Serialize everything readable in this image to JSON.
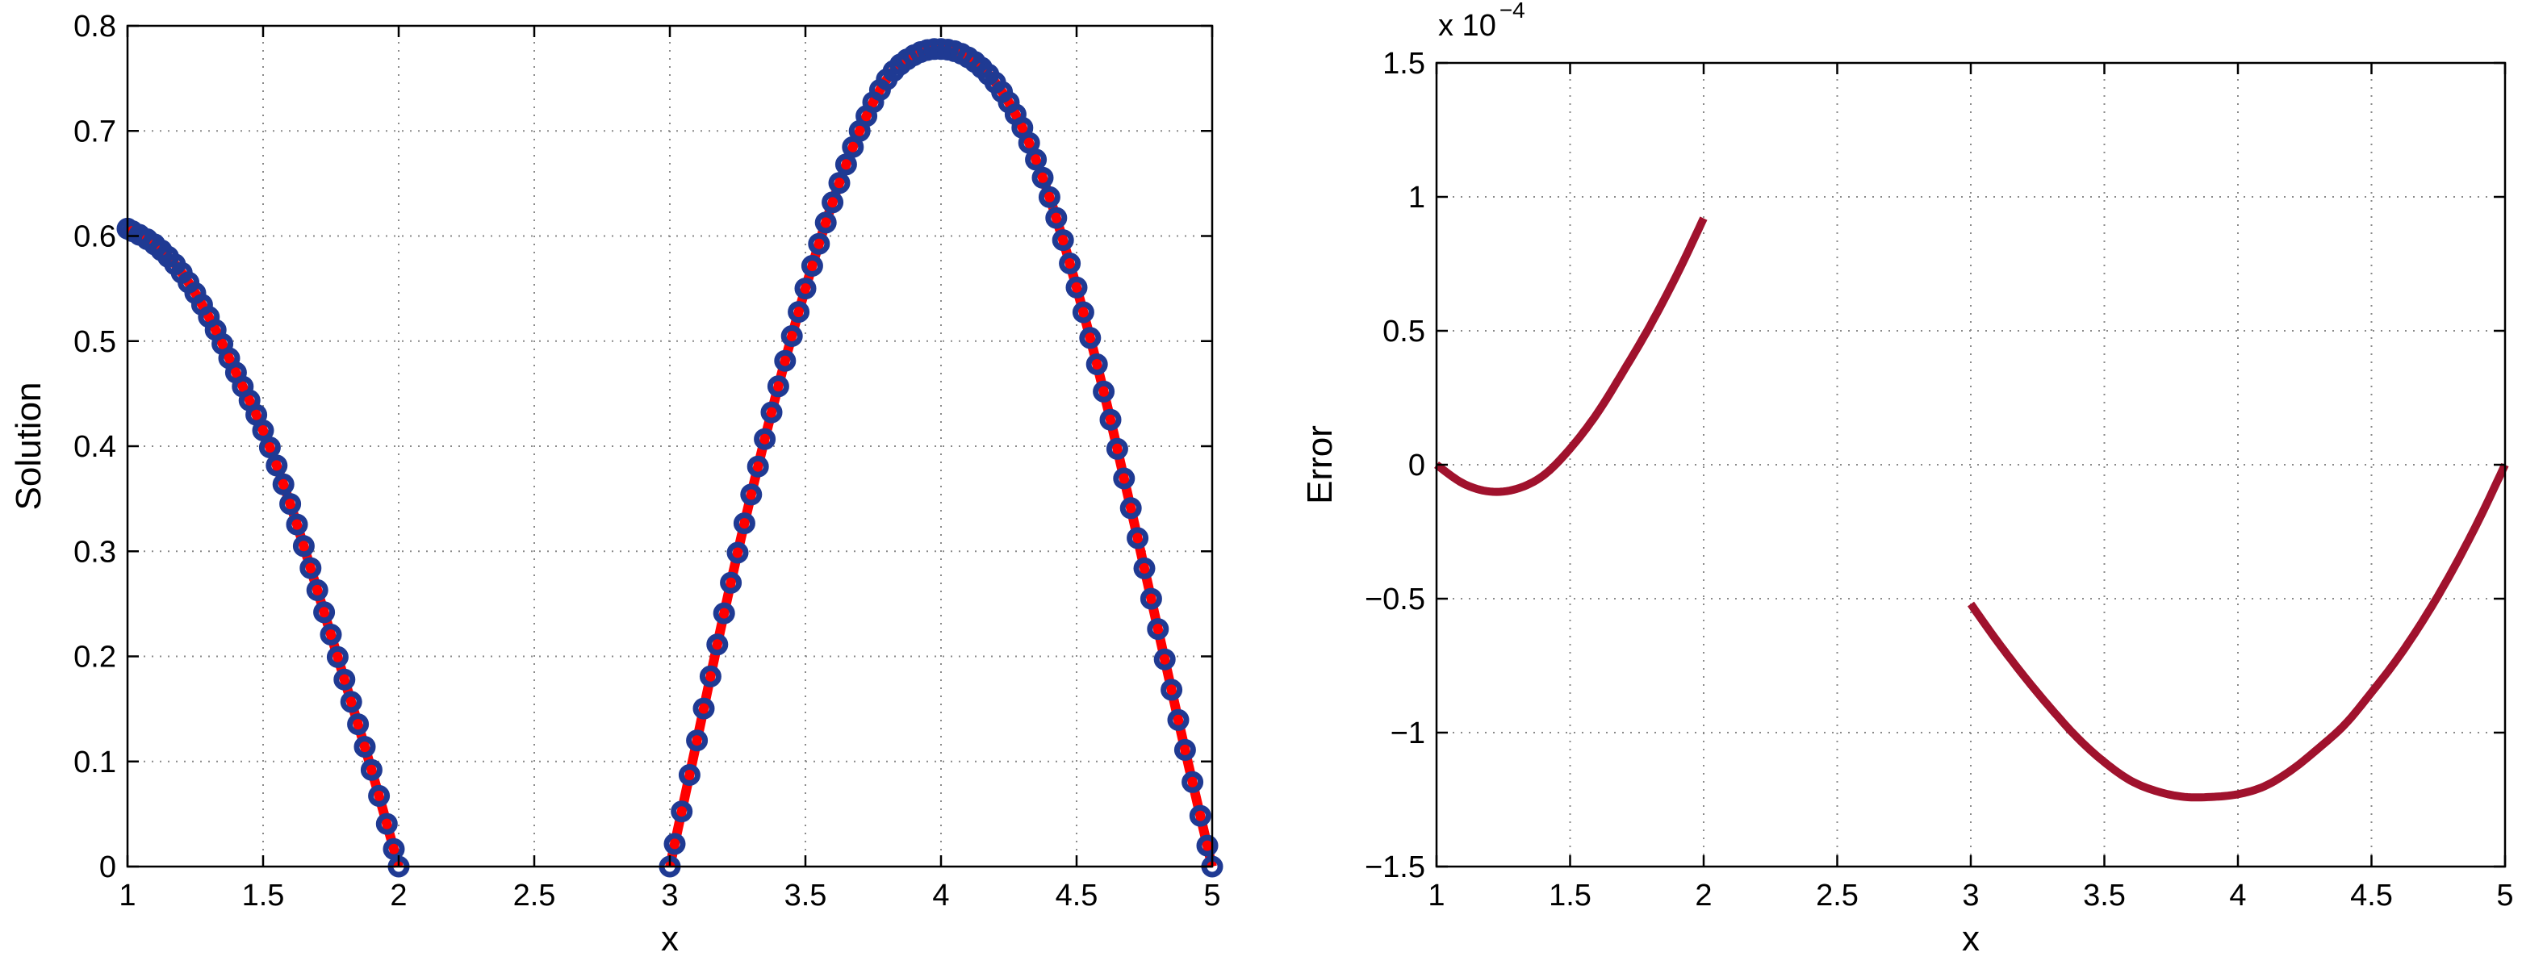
{
  "chart_data": [
    {
      "type": "line",
      "xlabel": "x",
      "ylabel": "Solution",
      "xlim": [
        1,
        5
      ],
      "ylim": [
        0,
        0.8
      ],
      "xticks": [
        "1",
        "1.5",
        "2",
        "2.5",
        "3",
        "3.5",
        "4",
        "4.5",
        "5"
      ],
      "yticks": [
        "0",
        "0.1",
        "0.2",
        "0.3",
        "0.4",
        "0.5",
        "0.6",
        "0.7",
        "0.8"
      ],
      "grid": true,
      "colors": {
        "line": "#ff0000",
        "markers": "#1f3a93"
      },
      "series": [
        {
          "style": "solid-line",
          "segments": [
            {
              "x": [
                1.0,
                1.1,
                1.2,
                1.3,
                1.4,
                1.5,
                1.6,
                1.7,
                1.8,
                1.9,
                2.0
              ],
              "y": [
                0.607,
                0.592,
                0.565,
                0.523,
                0.47,
                0.415,
                0.345,
                0.263,
                0.178,
                0.092,
                0.0
              ]
            },
            {
              "x": [
                3.0,
                3.1,
                3.2,
                3.3,
                3.4,
                3.5,
                3.6,
                3.7,
                3.8,
                3.9,
                4.0,
                4.1,
                4.2,
                4.3,
                4.4,
                4.5,
                4.6,
                4.7,
                4.8,
                4.9,
                5.0
              ],
              "y": [
                0.0,
                0.12,
                0.241,
                0.354,
                0.457,
                0.55,
                0.632,
                0.7,
                0.749,
                0.772,
                0.778,
                0.77,
                0.746,
                0.703,
                0.637,
                0.551,
                0.452,
                0.341,
                0.226,
                0.111,
                0.0
              ]
            }
          ]
        },
        {
          "style": "circle-markers",
          "segments": [
            {
              "x": [
                1.0,
                1.1,
                1.2,
                1.3,
                1.4,
                1.5,
                1.6,
                1.7,
                1.8,
                1.9,
                2.0
              ],
              "y": [
                0.607,
                0.592,
                0.565,
                0.523,
                0.47,
                0.415,
                0.345,
                0.263,
                0.178,
                0.092,
                0.0
              ]
            },
            {
              "x": [
                3.0,
                3.1,
                3.2,
                3.3,
                3.4,
                3.5,
                3.6,
                3.7,
                3.8,
                3.9,
                4.0,
                4.1,
                4.2,
                4.3,
                4.4,
                4.5,
                4.6,
                4.7,
                4.8,
                4.9,
                5.0
              ],
              "y": [
                0.0,
                0.12,
                0.241,
                0.354,
                0.457,
                0.55,
                0.632,
                0.7,
                0.749,
                0.772,
                0.778,
                0.77,
                0.746,
                0.703,
                0.637,
                0.551,
                0.452,
                0.341,
                0.226,
                0.111,
                0.0
              ]
            }
          ]
        }
      ]
    },
    {
      "type": "line",
      "xlabel": "x",
      "ylabel": "Error",
      "y_exponent_label": "x 10",
      "y_exponent_power": "−4",
      "xlim": [
        1,
        5
      ],
      "ylim": [
        -1.5,
        1.5
      ],
      "xticks": [
        "1",
        "1.5",
        "2",
        "2.5",
        "3",
        "3.5",
        "4",
        "4.5",
        "5"
      ],
      "yticks": [
        "−1.5",
        "−1",
        "−0.5",
        "0",
        "0.5",
        "1",
        "1.5"
      ],
      "grid": true,
      "colors": {
        "line": "#a0122d"
      },
      "series": [
        {
          "style": "solid-line",
          "segments": [
            {
              "x": [
                1.0,
                1.1,
                1.2,
                1.3,
                1.4,
                1.5,
                1.6,
                1.7,
                1.8,
                1.9,
                2.0
              ],
              "y": [
                0.0,
                -0.07,
                -0.1,
                -0.09,
                -0.04,
                0.06,
                0.19,
                0.35,
                0.52,
                0.71,
                0.92
              ]
            },
            {
              "x": [
                3.0,
                3.1,
                3.2,
                3.3,
                3.4,
                3.5,
                3.6,
                3.7,
                3.8,
                3.9,
                4.0,
                4.1,
                4.2,
                4.3,
                4.4,
                4.5,
                4.6,
                4.7,
                4.8,
                4.9,
                5.0
              ],
              "y": [
                -0.52,
                -0.66,
                -0.79,
                -0.91,
                -1.02,
                -1.11,
                -1.18,
                -1.22,
                -1.24,
                -1.24,
                -1.23,
                -1.2,
                -1.14,
                -1.06,
                -0.97,
                -0.85,
                -0.72,
                -0.57,
                -0.4,
                -0.21,
                0.0
              ]
            }
          ]
        }
      ]
    }
  ]
}
